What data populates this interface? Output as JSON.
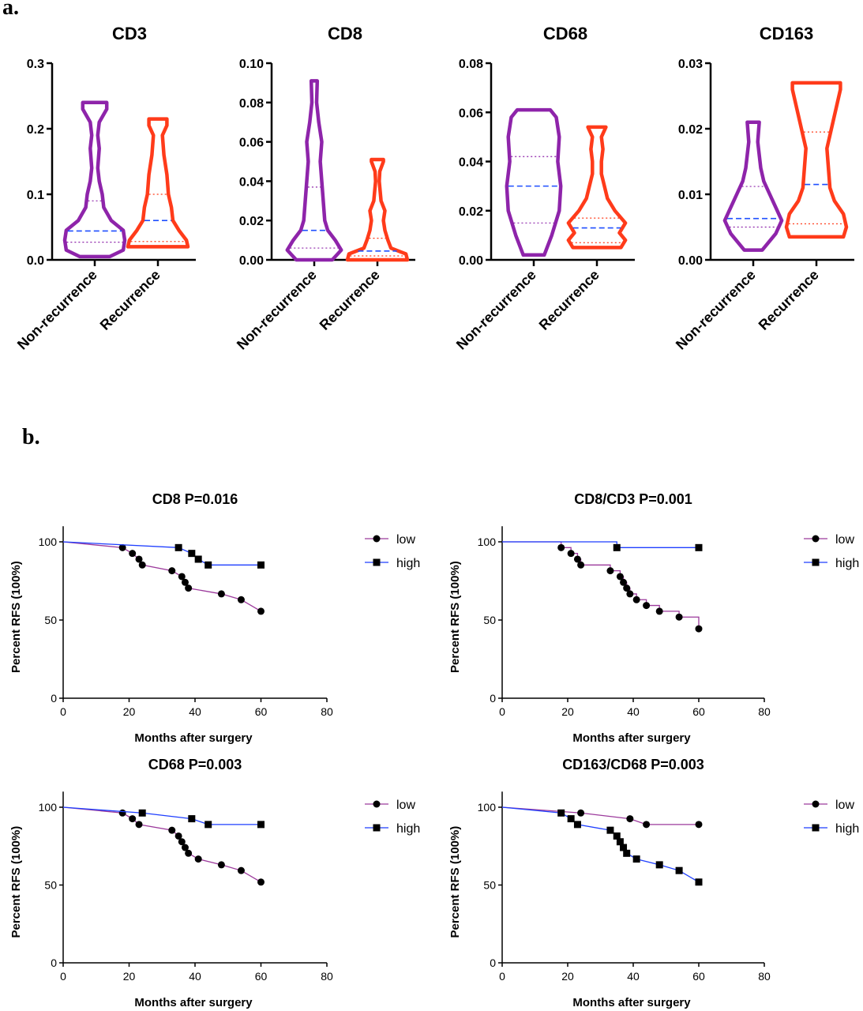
{
  "panels": {
    "a": "a.",
    "b": "b."
  },
  "colors": {
    "non_recurrence": "#8e24aa",
    "recurrence": "#ff3b1a",
    "median_line": "#1f4fff",
    "low": "#9c3a9c",
    "high": "#1f3fff",
    "marker": "#000000"
  },
  "chart_data": [
    {
      "type": "violin",
      "title": "CD3",
      "categories": [
        "Non-recurrence",
        "Recurrence"
      ],
      "ylim": [
        0,
        0.3
      ],
      "yticks": [
        "0.0",
        "0.1",
        "0.2",
        "0.3"
      ],
      "series": [
        {
          "name": "Non-recurrence",
          "min": 0.005,
          "max": 0.24,
          "q1": 0.027,
          "median": 0.044,
          "q3": 0.09
        },
        {
          "name": "Recurrence",
          "min": 0.02,
          "max": 0.215,
          "q1": 0.028,
          "median": 0.06,
          "q3": 0.1
        }
      ]
    },
    {
      "type": "violin",
      "title": "CD8",
      "categories": [
        "Non-recurrence",
        "Recurrence"
      ],
      "ylim": [
        0,
        0.1
      ],
      "yticks": [
        "0.00",
        "0.02",
        "0.04",
        "0.06",
        "0.08",
        "0.10"
      ],
      "series": [
        {
          "name": "Non-recurrence",
          "min": 0.0,
          "max": 0.091,
          "q1": 0.006,
          "median": 0.015,
          "q3": 0.037
        },
        {
          "name": "Recurrence",
          "min": 0.0,
          "max": 0.051,
          "q1": 0.002,
          "median": 0.0045,
          "q3": 0.011
        }
      ]
    },
    {
      "type": "violin",
      "title": "CD68",
      "categories": [
        "Non-recurrence",
        "Recurrence"
      ],
      "ylim": [
        0,
        0.08
      ],
      "yticks": [
        "0.00",
        "0.02",
        "0.04",
        "0.06",
        "0.08"
      ],
      "series": [
        {
          "name": "Non-recurrence",
          "min": 0.002,
          "max": 0.061,
          "q1": 0.015,
          "median": 0.03,
          "q3": 0.042
        },
        {
          "name": "Recurrence",
          "min": 0.005,
          "max": 0.054,
          "q1": 0.007,
          "median": 0.013,
          "q3": 0.017
        }
      ]
    },
    {
      "type": "violin",
      "title": "CD163",
      "categories": [
        "Non-recurrence",
        "Recurrence"
      ],
      "ylim": [
        0,
        0.03
      ],
      "yticks": [
        "0.00",
        "0.01",
        "0.02",
        "0.03"
      ],
      "series": [
        {
          "name": "Non-recurrence",
          "min": 0.0015,
          "max": 0.021,
          "q1": 0.005,
          "median": 0.0063,
          "q3": 0.0112
        },
        {
          "name": "Recurrence",
          "min": 0.0035,
          "max": 0.027,
          "q1": 0.0055,
          "median": 0.0115,
          "q3": 0.0195
        }
      ]
    },
    {
      "type": "line",
      "title": "CD8  P=0.016",
      "xlabel": "Months after surgery",
      "ylabel": "Percent  RFS (100%)",
      "xlim": [
        0,
        80
      ],
      "ylim": [
        0,
        110
      ],
      "xticks": [
        "0",
        "20",
        "40",
        "60",
        "80"
      ],
      "yticks": [
        "0",
        "50",
        "100"
      ],
      "series": [
        {
          "name": "low",
          "x": [
            0,
            18,
            21,
            23,
            24,
            33,
            36,
            37,
            38,
            48,
            54,
            60
          ],
          "y": [
            100,
            96.3,
            92.6,
            88.9,
            85.2,
            81.5,
            77.8,
            74.1,
            70.4,
            66.7,
            63,
            55.6
          ]
        },
        {
          "name": "high",
          "x": [
            0,
            35,
            39,
            41,
            44,
            60
          ],
          "y": [
            100,
            96.3,
            92.6,
            88.9,
            85.2,
            85.2
          ]
        }
      ]
    },
    {
      "type": "line",
      "title": "CD8/CD3  P=0.001",
      "xlabel": "Months after surgery",
      "ylabel": "Percent  RFS (100%)",
      "xlim": [
        0,
        80
      ],
      "ylim": [
        0,
        110
      ],
      "xticks": [
        "0",
        "20",
        "40",
        "60",
        "80"
      ],
      "yticks": [
        "0",
        "50",
        "100"
      ],
      "series": [
        {
          "name": "low",
          "x": [
            0,
            18,
            21,
            23,
            24,
            33,
            36,
            37,
            38,
            39,
            41,
            44,
            48,
            54,
            60
          ],
          "y": [
            100,
            96.3,
            92.6,
            88.9,
            85.2,
            81.5,
            77.8,
            74.1,
            70.4,
            66.7,
            63,
            59.3,
            55.6,
            51.9,
            44.4
          ]
        },
        {
          "name": "high",
          "x": [
            0,
            35,
            60
          ],
          "y": [
            100,
            96.3,
            96.3
          ]
        }
      ]
    },
    {
      "type": "line",
      "title": "CD68   P=0.003",
      "xlabel": "Months after surgery",
      "ylabel": "Percent  RFS (100%)",
      "xlim": [
        0,
        80
      ],
      "ylim": [
        0,
        110
      ],
      "xticks": [
        "0",
        "20",
        "40",
        "60",
        "80"
      ],
      "yticks": [
        "0",
        "50",
        "100"
      ],
      "series": [
        {
          "name": "low",
          "x": [
            0,
            18,
            21,
            23,
            33,
            35,
            36,
            37,
            38,
            41,
            48,
            54,
            60
          ],
          "y": [
            100,
            96.3,
            92.6,
            88.9,
            85.2,
            81.5,
            77.8,
            74.1,
            70.4,
            66.7,
            63,
            59.3,
            51.9
          ]
        },
        {
          "name": "high",
          "x": [
            0,
            24,
            39,
            44,
            60
          ],
          "y": [
            100,
            96.3,
            92.6,
            88.9,
            88.9
          ]
        }
      ]
    },
    {
      "type": "line",
      "title": "CD163/CD68  P=0.003",
      "xlabel": "Months after surgery",
      "ylabel": "Percent  RFS (100%)",
      "xlim": [
        0,
        80
      ],
      "ylim": [
        0,
        110
      ],
      "xticks": [
        "0",
        "20",
        "40",
        "60",
        "80"
      ],
      "yticks": [
        "0",
        "50",
        "100"
      ],
      "series": [
        {
          "name": "low",
          "x": [
            0,
            24,
            39,
            44,
            60
          ],
          "y": [
            100,
            96.3,
            92.6,
            88.9,
            88.9
          ]
        },
        {
          "name": "high",
          "x": [
            0,
            18,
            21,
            23,
            33,
            35,
            36,
            37,
            38,
            41,
            48,
            54,
            60
          ],
          "y": [
            100,
            96.3,
            92.6,
            88.9,
            85.2,
            81.5,
            77.8,
            74.1,
            70.4,
            66.7,
            63,
            59.3,
            51.9
          ]
        }
      ]
    }
  ]
}
